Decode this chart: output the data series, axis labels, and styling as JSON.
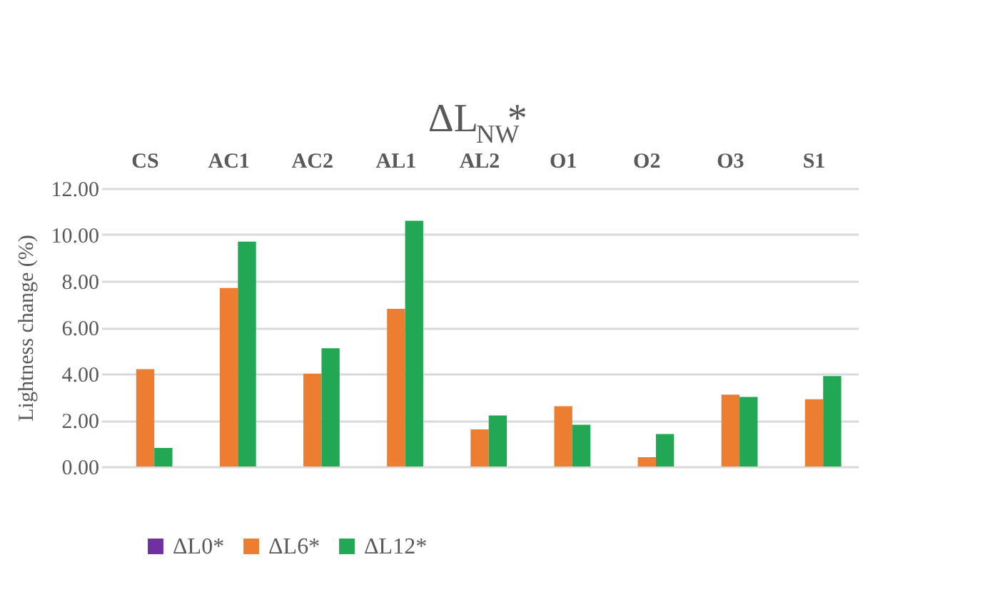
{
  "chart_data": {
    "type": "bar",
    "title": "ΔL$_{NW}$*",
    "ylabel": "Lightness change (%)",
    "categories": [
      "CS",
      "AC1",
      "AC2",
      "AL1",
      "AL2",
      "O1",
      "O2",
      "O3",
      "S1"
    ],
    "series": [
      {
        "name": "ΔL0*",
        "color": "#7030a0",
        "values": [
          0,
          0,
          0,
          0,
          0,
          0,
          0,
          0,
          0
        ]
      },
      {
        "name": "ΔL6*",
        "color": "#ed7d31",
        "values": [
          4.2,
          7.7,
          4.0,
          6.8,
          1.6,
          2.6,
          0.4,
          3.1,
          2.9
        ]
      },
      {
        "name": "ΔL12*",
        "color": "#22a855",
        "values": [
          0.8,
          9.7,
          5.1,
          10.6,
          2.2,
          1.8,
          1.4,
          3.0,
          3.9
        ]
      }
    ],
    "ylim": [
      0,
      12
    ],
    "yticks": [
      {
        "value": 0,
        "label": "0.00"
      },
      {
        "value": 2,
        "label": "2.00"
      },
      {
        "value": 4,
        "label": "4.00"
      },
      {
        "value": 6,
        "label": "6.00"
      },
      {
        "value": 8,
        "label": "8.00"
      },
      {
        "value": 10,
        "label": "10.00"
      },
      {
        "value": 12,
        "label": "12.00"
      }
    ],
    "grid": "y",
    "legend": "bottom"
  }
}
